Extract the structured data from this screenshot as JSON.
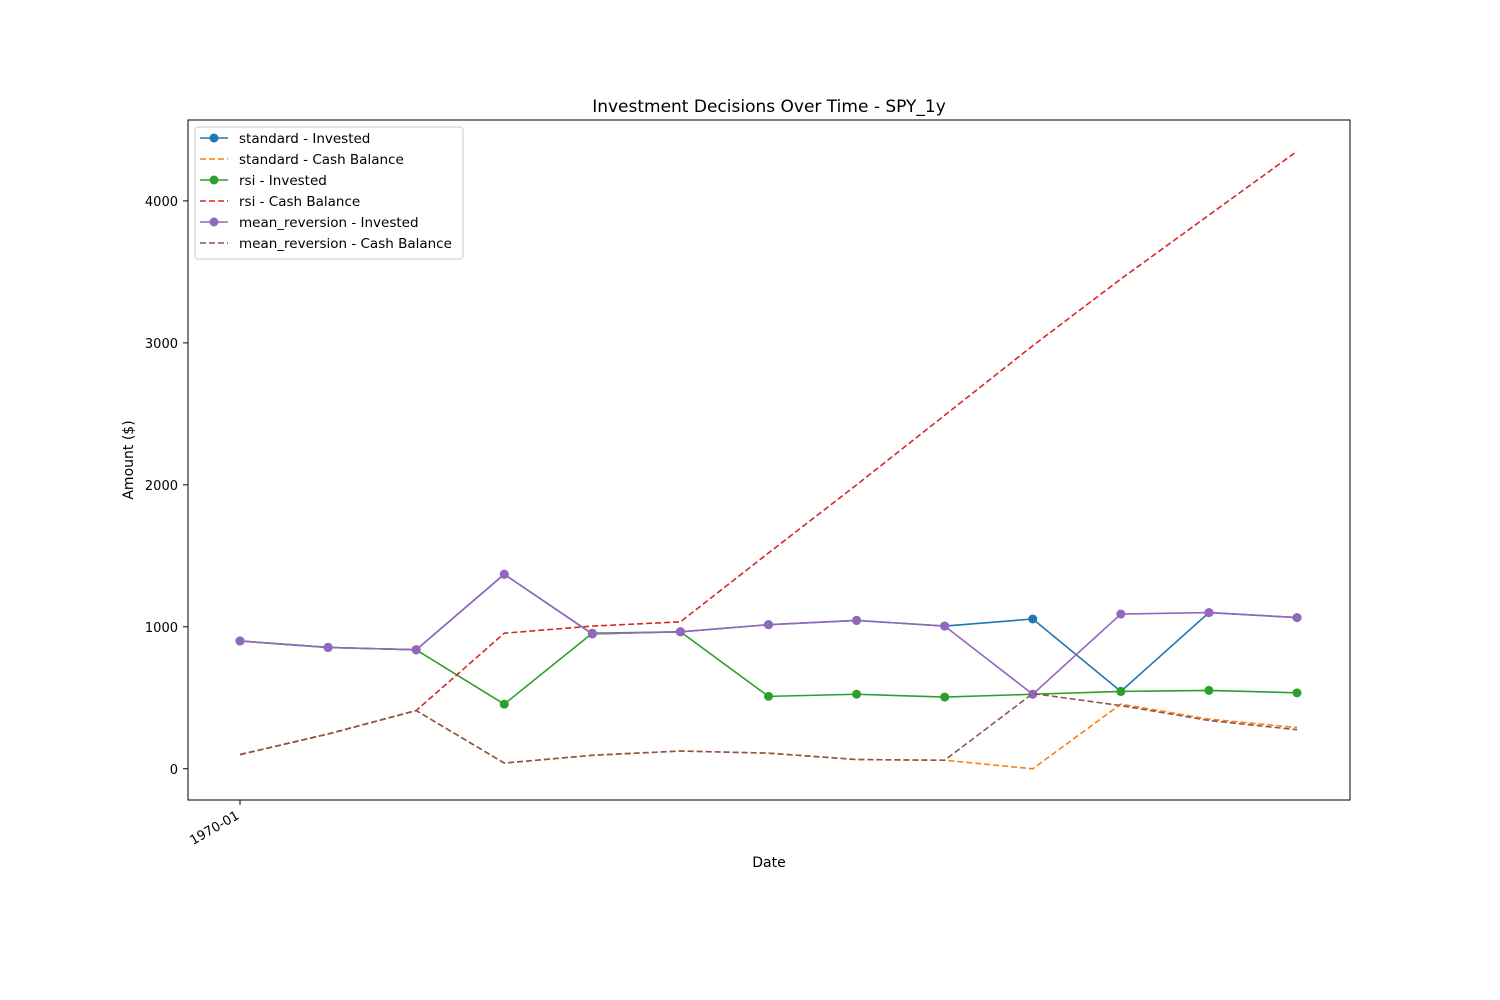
{
  "chart_data": {
    "type": "line",
    "title": "Investment Decisions Over Time - SPY_1y",
    "xlabel": "Date",
    "ylabel": "Amount ($)",
    "x_tick_labels": [
      "1970-01"
    ],
    "y_ticks": [
      0,
      1000,
      2000,
      3000,
      4000
    ],
    "ylim": [
      -220,
      4570
    ],
    "grid": false,
    "legend_position": "upper-left",
    "x": [
      0,
      1,
      2,
      3,
      4,
      5,
      6,
      7,
      8,
      9,
      10,
      11,
      12
    ],
    "series": [
      {
        "name": "standard - Invested",
        "style": "solid",
        "marker": "circle",
        "color": "#1f77b4",
        "values": [
          900,
          855,
          838,
          1370,
          950,
          965,
          1015,
          1045,
          1005,
          1055,
          545,
          1100,
          1065
        ]
      },
      {
        "name": "standard - Cash Balance",
        "style": "dashed",
        "marker": "none",
        "color": "#ff7f0e",
        "values": [
          100,
          245,
          410,
          40,
          95,
          125,
          110,
          65,
          60,
          0,
          455,
          350,
          290
        ]
      },
      {
        "name": "rsi - Invested",
        "style": "solid",
        "marker": "circle",
        "color": "#2ca02c",
        "values": [
          900,
          855,
          838,
          455,
          955,
          965,
          510,
          525,
          505,
          525,
          545,
          552,
          535
        ]
      },
      {
        "name": "rsi - Cash Balance",
        "style": "dashed",
        "marker": "none",
        "color": "#d62728",
        "values": [
          100,
          245,
          410,
          955,
          1005,
          1035,
          1520,
          2000,
          2490,
          2980,
          3450,
          3900,
          4350
        ]
      },
      {
        "name": "mean_reversion - Invested",
        "style": "solid",
        "marker": "circle",
        "color": "#9467bd",
        "values": [
          900,
          855,
          838,
          1370,
          950,
          965,
          1015,
          1045,
          1005,
          525,
          1090,
          1100,
          1065
        ]
      },
      {
        "name": "mean_reversion - Cash Balance",
        "style": "dashed",
        "marker": "none",
        "color": "#8c564b",
        "values": [
          100,
          245,
          410,
          40,
          95,
          125,
          110,
          65,
          60,
          530,
          445,
          340,
          275
        ]
      }
    ]
  }
}
